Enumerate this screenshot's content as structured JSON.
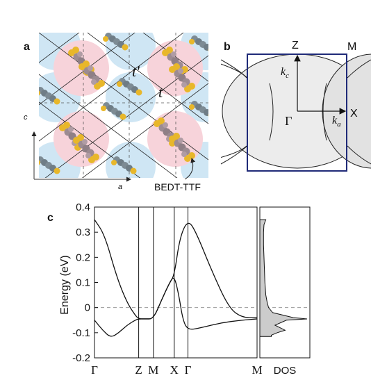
{
  "panels": {
    "a": {
      "label": "a",
      "axis_x_label": "a",
      "axis_y_label": "c",
      "hopping_t": "t",
      "hopping_tprime": "t'",
      "molecule_label": "BEDT-TTF"
    },
    "b": {
      "label": "b",
      "points": {
        "Z": "Z",
        "M": "M",
        "X": "X",
        "Gamma": "Γ"
      },
      "kc": "k",
      "kc_sub": "c",
      "ka": "k",
      "ka_sub": "a"
    },
    "c": {
      "label": "c",
      "dos_label": "DOS"
    }
  },
  "chart_data": {
    "type": "line",
    "ylabel": "Energy (eV)",
    "ylim": [
      -0.2,
      0.4
    ],
    "yticks": [
      "0.4",
      "0.3",
      "0.2",
      "0.1",
      "0",
      "-0.1",
      "-0.2"
    ],
    "k_path": [
      "Γ",
      "Z",
      "M",
      "X",
      "Γ",
      "M"
    ],
    "series": [
      {
        "points": [
          [
            0.0,
            0.35
          ],
          [
            0.1,
            0.29
          ],
          [
            0.22,
            0.12
          ],
          [
            0.32,
            0.02
          ],
          [
            0.4,
            -0.03
          ],
          [
            0.435,
            -0.045
          ],
          [
            0.5,
            -0.045
          ],
          [
            0.58,
            -0.045
          ],
          [
            0.66,
            0.03
          ],
          [
            0.74,
            0.1
          ],
          [
            0.785,
            0.127
          ],
          [
            0.84,
            0.28
          ],
          [
            0.92,
            0.35
          ],
          [
            1.0,
            0.3
          ],
          [
            1.15,
            0.15
          ],
          [
            1.32,
            0.0
          ],
          [
            1.45,
            -0.04
          ],
          [
            1.6,
            -0.04
          ]
        ]
      },
      {
        "points": [
          [
            0.0,
            -0.05
          ],
          [
            0.08,
            -0.09
          ],
          [
            0.16,
            -0.12
          ],
          [
            0.24,
            -0.1
          ],
          [
            0.32,
            -0.07
          ],
          [
            0.4,
            -0.05
          ],
          [
            0.435,
            -0.045
          ],
          [
            0.5,
            -0.045
          ],
          [
            0.58,
            -0.045
          ],
          [
            0.66,
            0.03
          ],
          [
            0.74,
            0.1
          ],
          [
            0.785,
            0.127
          ],
          [
            0.83,
            0.05
          ],
          [
            0.87,
            -0.05
          ],
          [
            0.92,
            -0.09
          ],
          [
            1.05,
            -0.08
          ],
          [
            1.25,
            -0.06
          ],
          [
            1.45,
            -0.05
          ],
          [
            1.6,
            -0.045
          ]
        ]
      }
    ],
    "fermi_level": 0,
    "dos": {
      "energy": [
        0.35,
        0.33,
        0.3,
        0.25,
        0.2,
        0.15,
        0.1,
        0.05,
        0.02,
        0.0,
        -0.02,
        -0.04,
        -0.045,
        -0.05,
        -0.07,
        -0.09,
        -0.1,
        -0.11,
        -0.115
      ],
      "value": [
        0.1,
        0.06,
        0.05,
        0.05,
        0.06,
        0.07,
        0.08,
        0.1,
        0.13,
        0.16,
        0.25,
        0.7,
        1.0,
        0.55,
        0.3,
        0.52,
        0.35,
        0.22,
        0.22
      ]
    }
  }
}
